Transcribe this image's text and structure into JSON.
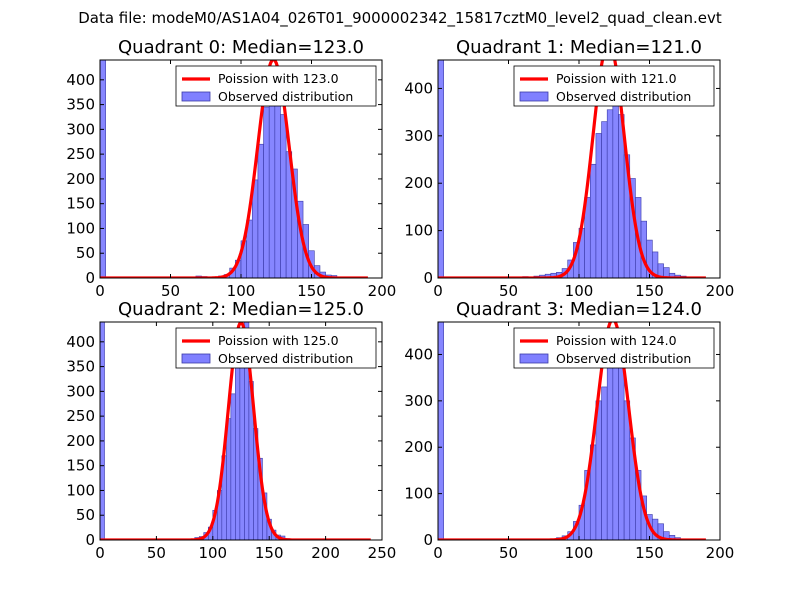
{
  "suptitle": "Data file: modeM0/AS1A04_026T01_9000002342_15817cztM0_level2_quad_clean.evt",
  "colors": {
    "bar_fill": "#8080ff",
    "bar_edge": "#3a3aa8",
    "pdf_line": "#ff0000",
    "axis": "#000000"
  },
  "chart_data": [
    {
      "type": "bar",
      "title": "Quadrant 0: Median=123.0",
      "xlim": [
        0,
        200
      ],
      "ylim": [
        0,
        440
      ],
      "xticks": [
        0,
        50,
        100,
        150,
        200
      ],
      "yticks": [
        0,
        50,
        100,
        150,
        200,
        250,
        300,
        350,
        400
      ],
      "xlabel": "",
      "ylabel": "",
      "bin_width": 4,
      "bin_starts": [
        0,
        52,
        68,
        72,
        80,
        84,
        88,
        92,
        96,
        100,
        104,
        108,
        112,
        116,
        120,
        124,
        128,
        132,
        136,
        140,
        144,
        148,
        152,
        156,
        160,
        164,
        168
      ],
      "counts": [
        440,
        1,
        4,
        3,
        2,
        4,
        7,
        20,
        36,
        75,
        117,
        198,
        270,
        345,
        420,
        390,
        330,
        255,
        220,
        155,
        108,
        55,
        25,
        12,
        6,
        5,
        2
      ],
      "median": 123.0,
      "legend": {
        "line_label": "Poission with 123.0",
        "bar_label": "Observed distribution",
        "loc": "upper-right"
      }
    },
    {
      "type": "bar",
      "title": "Quadrant 1: Median=121.0",
      "xlim": [
        0,
        200
      ],
      "ylim": [
        0,
        460
      ],
      "xticks": [
        0,
        50,
        100,
        150,
        200
      ],
      "yticks": [
        0,
        100,
        200,
        300,
        400
      ],
      "xlabel": "",
      "ylabel": "",
      "bin_width": 4,
      "bin_starts": [
        0,
        60,
        68,
        72,
        76,
        80,
        84,
        88,
        92,
        96,
        100,
        104,
        108,
        112,
        116,
        120,
        124,
        128,
        132,
        136,
        140,
        144,
        148,
        152,
        156,
        160,
        164,
        168,
        172
      ],
      "counts": [
        460,
        3,
        4,
        6,
        8,
        10,
        12,
        20,
        38,
        75,
        105,
        170,
        240,
        305,
        330,
        355,
        440,
        345,
        260,
        210,
        170,
        120,
        80,
        55,
        30,
        22,
        10,
        6,
        4
      ],
      "median": 121.0,
      "legend": {
        "line_label": "Poission with 121.0",
        "bar_label": "Observed distribution",
        "loc": "upper-right"
      }
    },
    {
      "type": "bar",
      "title": "Quadrant 2: Median=125.0",
      "xlim": [
        0,
        250
      ],
      "ylim": [
        0,
        440
      ],
      "xticks": [
        0,
        50,
        100,
        150,
        200,
        250
      ],
      "yticks": [
        0,
        50,
        100,
        150,
        200,
        250,
        300,
        350,
        400
      ],
      "xlabel": "",
      "ylabel": "",
      "bin_width": 4,
      "bin_starts": [
        0,
        56,
        76,
        84,
        88,
        92,
        96,
        100,
        104,
        108,
        112,
        116,
        120,
        124,
        128,
        132,
        136,
        140,
        144,
        148,
        152,
        156,
        160,
        164
      ],
      "counts": [
        440,
        2,
        2,
        5,
        7,
        15,
        26,
        60,
        100,
        170,
        245,
        295,
        420,
        400,
        440,
        320,
        225,
        165,
        95,
        42,
        20,
        10,
        8,
        3
      ],
      "median": 125.0,
      "legend": {
        "line_label": "Poission with 125.0",
        "bar_label": "Observed distribution",
        "loc": "upper-right"
      }
    },
    {
      "type": "bar",
      "title": "Quadrant 3: Median=124.0",
      "xlim": [
        0,
        200
      ],
      "ylim": [
        0,
        470
      ],
      "xticks": [
        0,
        50,
        100,
        150,
        200
      ],
      "yticks": [
        0,
        100,
        200,
        300,
        400
      ],
      "xlabel": "",
      "ylabel": "",
      "bin_width": 4,
      "bin_starts": [
        0,
        72,
        84,
        88,
        92,
        96,
        100,
        104,
        108,
        112,
        116,
        120,
        124,
        128,
        132,
        136,
        140,
        144,
        148,
        152,
        156,
        160,
        164,
        168
      ],
      "counts": [
        470,
        2,
        5,
        9,
        18,
        40,
        75,
        150,
        205,
        300,
        330,
        440,
        435,
        380,
        300,
        220,
        150,
        95,
        55,
        45,
        35,
        18,
        10,
        5
      ],
      "median": 124.0,
      "legend": {
        "line_label": "Poission with 124.0",
        "bar_label": "Observed distribution",
        "loc": "upper-right"
      }
    }
  ]
}
